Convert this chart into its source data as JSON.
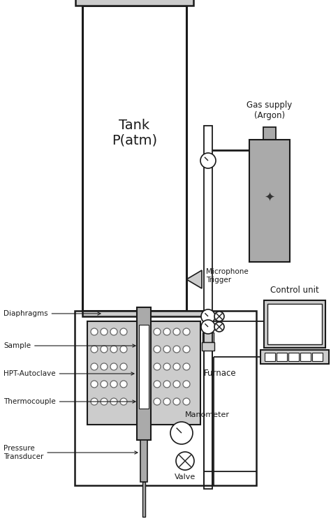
{
  "bg_color": "#ffffff",
  "line_color": "#1a1a1a",
  "gray_fill": "#aaaaaa",
  "light_gray": "#cccccc",
  "dot_color": "#888888",
  "labels": {
    "tank": "Tank\nP(atm)",
    "microphone": "Microphone\nTrigger",
    "gas_supply": "Gas supply\n(Argon)",
    "diaphragms": "Diaphragms",
    "sample": "Sample",
    "hpt": "HPT-Autoclave",
    "thermocouple": "Thermocouple",
    "pressure": "Pressure\nTransducer",
    "furnace": "Furnace",
    "manometer": "Manometer",
    "valve": "Valve",
    "control": "Control unit"
  }
}
